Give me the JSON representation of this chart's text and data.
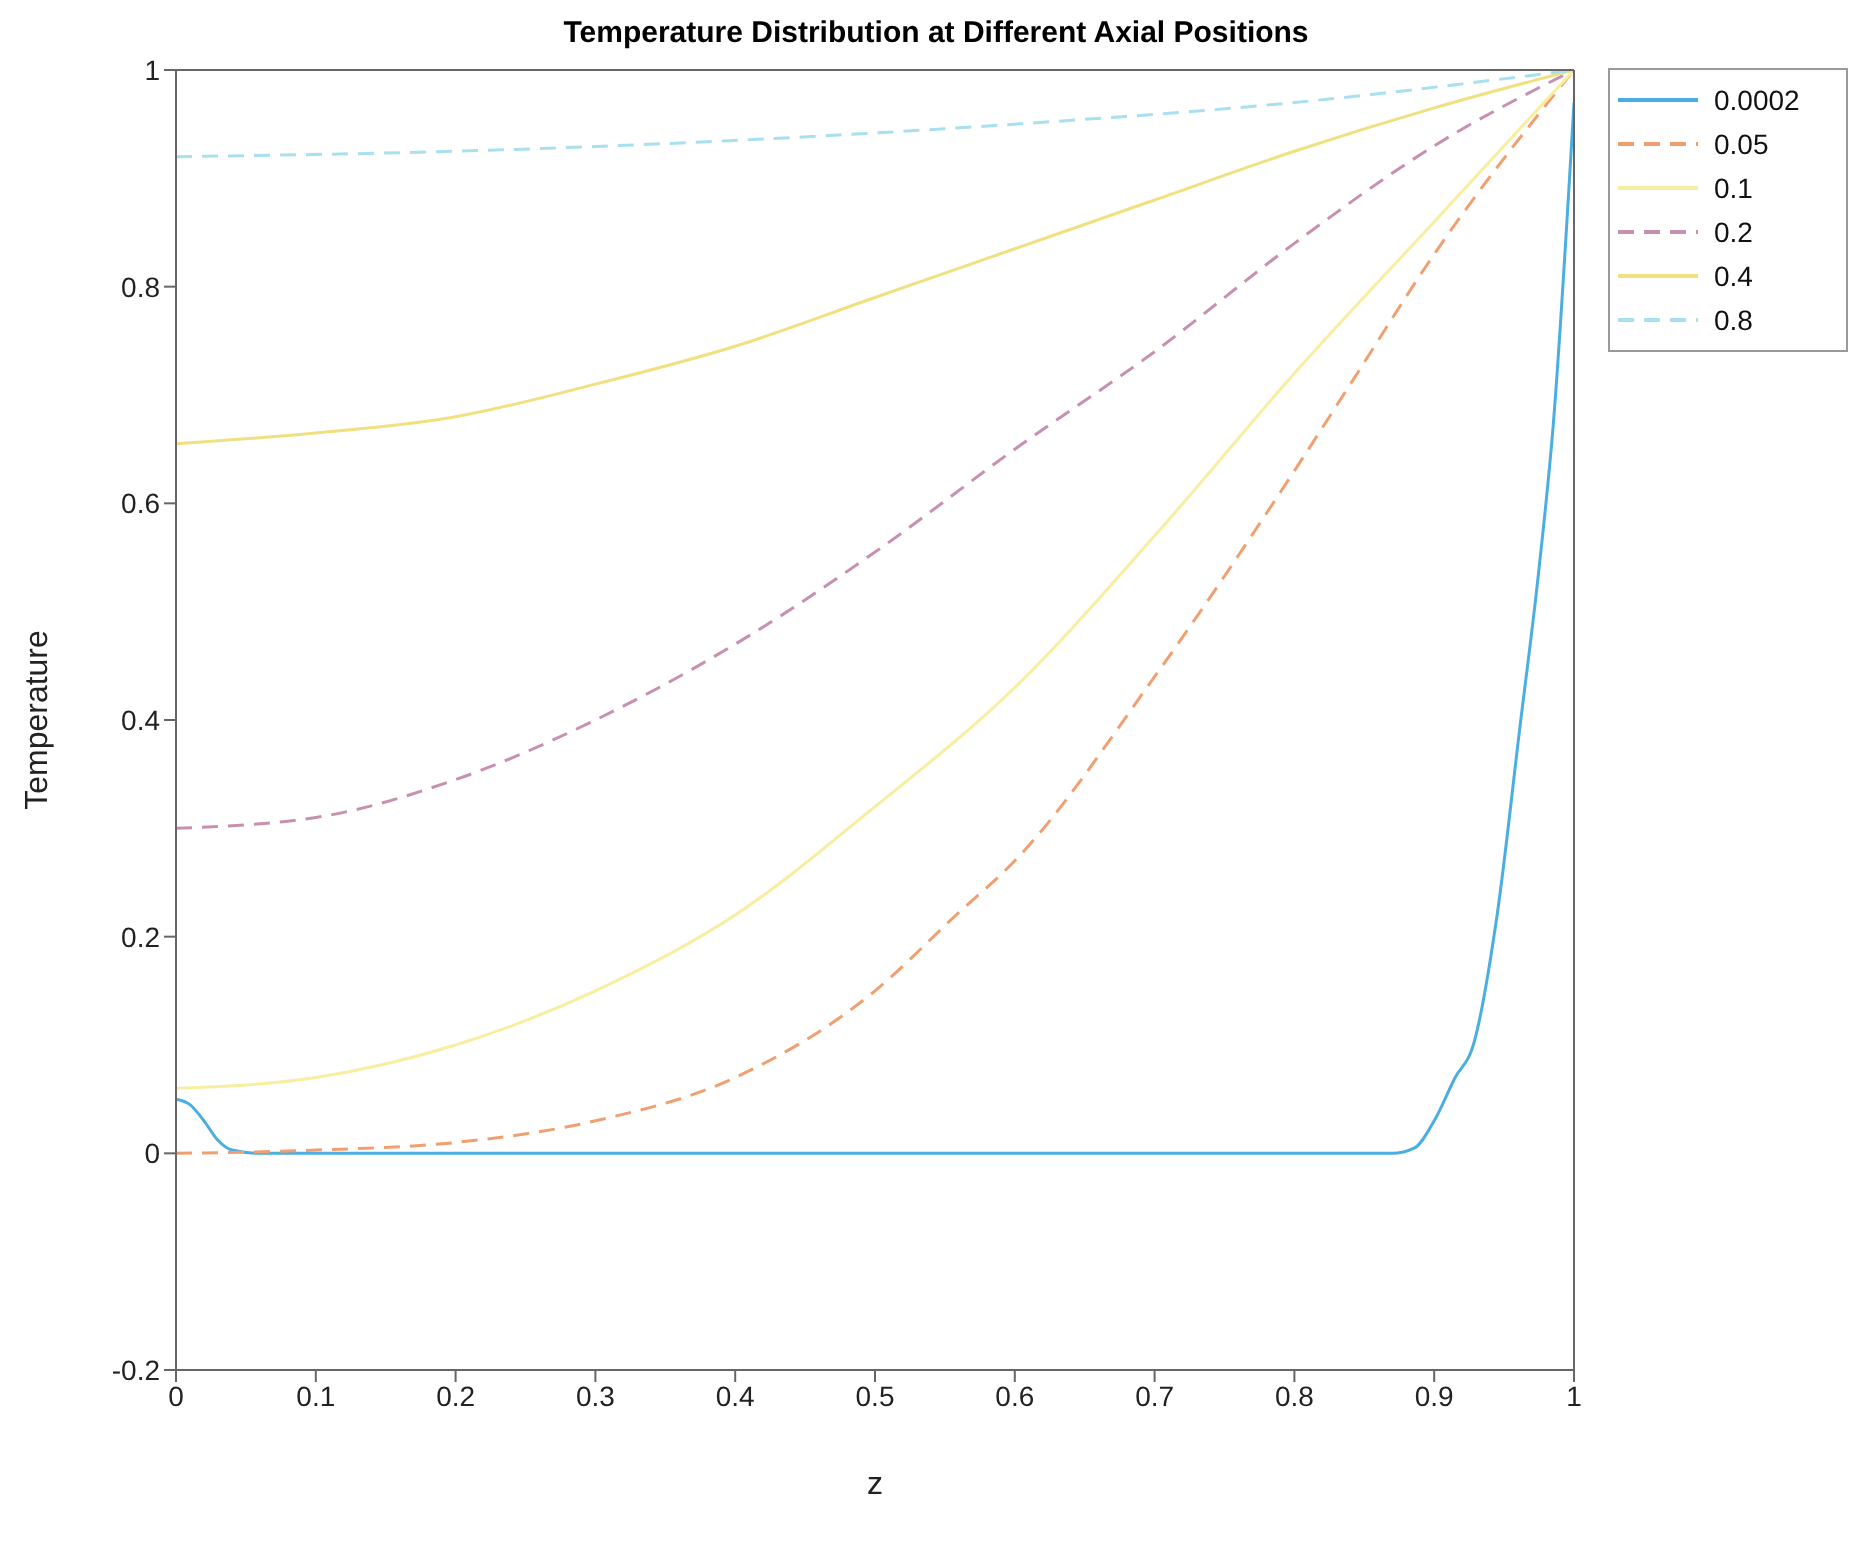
{
  "chart_data": {
    "type": "line",
    "title": "Temperature Distribution at Different Axial Positions",
    "xlabel": "z",
    "ylabel": "Temperature",
    "xlim": [
      0,
      1
    ],
    "ylim": [
      -0.2,
      1
    ],
    "xticks": [
      0,
      0.1,
      0.2,
      0.3,
      0.4,
      0.5,
      0.6,
      0.7,
      0.8,
      0.9,
      1
    ],
    "yticks": [
      -0.2,
      0,
      0.2,
      0.4,
      0.6,
      0.8,
      1
    ],
    "grid": false,
    "legend": "top right",
    "marker": "none",
    "series": [
      {
        "name": "0.0002",
        "color": "#4aaee0",
        "line_style": "solid",
        "x": [
          0,
          0.01,
          0.02,
          0.03,
          0.04,
          0.06,
          0.2,
          0.4,
          0.6,
          0.8,
          0.87,
          0.886,
          0.9,
          0.915,
          0.928,
          0.945,
          0.961,
          0.975,
          0.985,
          1
        ],
        "values": [
          0.05,
          0.045,
          0.03,
          0.012,
          0.003,
          0,
          0,
          0,
          0,
          0,
          0,
          0.005,
          0.03,
          0.07,
          0.1,
          0.22,
          0.39,
          0.54,
          0.67,
          0.97
        ]
      },
      {
        "name": "0.05",
        "color": "#f0a070",
        "line_style": "dashed",
        "x": [
          0,
          0.1,
          0.2,
          0.3,
          0.4,
          0.5,
          0.558,
          0.6,
          0.7,
          0.8,
          0.84,
          0.9,
          1
        ],
        "values": [
          0,
          0.003,
          0.01,
          0.03,
          0.07,
          0.15,
          0.22,
          0.27,
          0.44,
          0.63,
          0.71,
          0.83,
          1
        ]
      },
      {
        "name": "0.1",
        "color": "#f8eea0",
        "line_style": "solid",
        "x": [
          0,
          0.1,
          0.2,
          0.3,
          0.4,
          0.5,
          0.6,
          0.7,
          0.8,
          0.9,
          1
        ],
        "values": [
          0.06,
          0.07,
          0.1,
          0.15,
          0.22,
          0.32,
          0.43,
          0.57,
          0.72,
          0.86,
          1
        ]
      },
      {
        "name": "0.2",
        "color": "#c890b0",
        "line_style": "dashed",
        "x": [
          0,
          0.1,
          0.2,
          0.3,
          0.4,
          0.5,
          0.6,
          0.7,
          0.8,
          0.9,
          1
        ],
        "values": [
          0.3,
          0.31,
          0.345,
          0.4,
          0.47,
          0.555,
          0.65,
          0.74,
          0.84,
          0.93,
          1
        ]
      },
      {
        "name": "0.4",
        "color": "#f0e080",
        "line_style": "solid",
        "x": [
          0,
          0.1,
          0.2,
          0.3,
          0.4,
          0.5,
          0.6,
          0.7,
          0.8,
          0.9,
          1
        ],
        "values": [
          0.655,
          0.665,
          0.68,
          0.71,
          0.745,
          0.79,
          0.835,
          0.88,
          0.925,
          0.965,
          1
        ]
      },
      {
        "name": "0.8",
        "color": "#a8e0f0",
        "line_style": "dashed",
        "x": [
          0,
          0.2,
          0.4,
          0.6,
          0.8,
          1
        ],
        "values": [
          0.92,
          0.925,
          0.935,
          0.95,
          0.97,
          1
        ]
      }
    ]
  }
}
